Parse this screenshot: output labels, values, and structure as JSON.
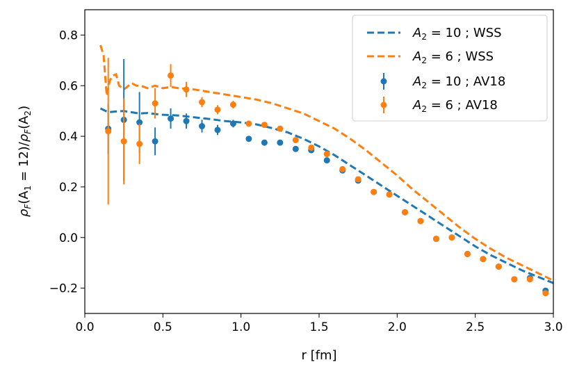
{
  "chart_data": {
    "type": "scatter",
    "xlabel": "r [fm]",
    "ylabel": "ρF(A1 = 12)/ρF(A2)",
    "ylabel_parts": {
      "rho_num": "ρ",
      "sub_F1": "F",
      "arg_num": "(A",
      "sub_1": "1",
      "eq": " = 12)/",
      "rho_den": "ρ",
      "sub_F2": "F",
      "arg_den": "(A",
      "sub_2": "2",
      "close": ")"
    },
    "xlim": [
      0.0,
      3.0
    ],
    "ylim": [
      -0.3,
      0.9
    ],
    "xticks": [
      0.0,
      0.5,
      1.0,
      1.5,
      2.0,
      2.5,
      3.0
    ],
    "xtick_labels": [
      "0.0",
      "0.5",
      "1.0",
      "1.5",
      "2.0",
      "2.5",
      "3.0"
    ],
    "yticks": [
      -0.2,
      0.0,
      0.2,
      0.4,
      0.6,
      0.8
    ],
    "ytick_labels": [
      "−0.2",
      "0.0",
      "0.2",
      "0.4",
      "0.6",
      "0.8"
    ],
    "legend_position": "top-right",
    "series": [
      {
        "name": "A2 = 10 ; WSS",
        "legend_math": {
          "A": "A",
          "sub": "2",
          "rest": " = 10 ; WSS"
        },
        "kind": "dashed-line",
        "color": "#1f77b4",
        "x": [
          0.1,
          0.15,
          0.2,
          0.25,
          0.3,
          0.35,
          0.4,
          0.45,
          0.5,
          0.6,
          0.7,
          0.8,
          0.9,
          1.0,
          1.1,
          1.2,
          1.3,
          1.4,
          1.5,
          1.6,
          1.7,
          1.8,
          1.9,
          2.0,
          2.1,
          2.2,
          2.3,
          2.4,
          2.5,
          2.6,
          2.7,
          2.8,
          2.9,
          3.0
        ],
        "y": [
          0.51,
          0.495,
          0.498,
          0.5,
          0.495,
          0.49,
          0.492,
          0.488,
          0.485,
          0.482,
          0.475,
          0.468,
          0.46,
          0.455,
          0.447,
          0.432,
          0.415,
          0.39,
          0.36,
          0.325,
          0.285,
          0.245,
          0.205,
          0.165,
          0.125,
          0.085,
          0.045,
          0.005,
          -0.035,
          -0.07,
          -0.1,
          -0.13,
          -0.155,
          -0.18
        ]
      },
      {
        "name": "A2 = 6 ; WSS",
        "legend_math": {
          "A": "A",
          "sub": "2",
          "rest": " = 6 ; WSS"
        },
        "kind": "dashed-line",
        "color": "#ff7f0e",
        "x": [
          0.1,
          0.12,
          0.14,
          0.16,
          0.18,
          0.2,
          0.22,
          0.25,
          0.28,
          0.3,
          0.33,
          0.36,
          0.4,
          0.45,
          0.5,
          0.55,
          0.6,
          0.7,
          0.8,
          0.9,
          1.0,
          1.1,
          1.2,
          1.3,
          1.4,
          1.5,
          1.6,
          1.7,
          1.8,
          1.9,
          2.0,
          2.1,
          2.2,
          2.3,
          2.4,
          2.5,
          2.6,
          2.7,
          2.8,
          2.9,
          3.0
        ],
        "y": [
          0.76,
          0.72,
          0.56,
          0.62,
          0.64,
          0.645,
          0.6,
          0.585,
          0.6,
          0.61,
          0.6,
          0.6,
          0.59,
          0.6,
          0.59,
          0.595,
          0.59,
          0.585,
          0.575,
          0.565,
          0.555,
          0.545,
          0.53,
          0.51,
          0.49,
          0.46,
          0.43,
          0.39,
          0.345,
          0.295,
          0.245,
          0.19,
          0.14,
          0.09,
          0.04,
          -0.005,
          -0.045,
          -0.08,
          -0.11,
          -0.14,
          -0.17
        ]
      },
      {
        "name": "A2 = 10 ; AV18",
        "legend_math": {
          "A": "A",
          "sub": "2",
          "rest": " = 10 ; AV18"
        },
        "kind": "errorbar",
        "color": "#1f77b4",
        "x": [
          0.15,
          0.25,
          0.35,
          0.45,
          0.55,
          0.65,
          0.75,
          0.85,
          0.95,
          1.05,
          1.15,
          1.25,
          1.35,
          1.45,
          1.55,
          1.65,
          1.75,
          1.85,
          1.95,
          2.05,
          2.15,
          2.25,
          2.35,
          2.45,
          2.55,
          2.65,
          2.75,
          2.85,
          2.95
        ],
        "y": [
          0.43,
          0.465,
          0.455,
          0.38,
          0.47,
          0.46,
          0.44,
          0.425,
          0.45,
          0.39,
          0.375,
          0.375,
          0.35,
          0.345,
          0.305,
          0.265,
          0.225,
          0.18,
          0.17,
          0.1,
          0.065,
          -0.005,
          0.0,
          -0.065,
          -0.085,
          -0.115,
          -0.165,
          -0.16,
          -0.21
        ],
        "yerr": [
          0.1,
          0.24,
          0.12,
          0.055,
          0.04,
          0.03,
          0.025,
          0.02,
          0.015,
          0.01,
          0.01,
          0.008,
          0.008,
          0.008,
          0.008,
          0.008,
          0.008,
          0.008,
          0.008,
          0.008,
          0.008,
          0.008,
          0.008,
          0.008,
          0.008,
          0.008,
          0.008,
          0.008,
          0.008
        ]
      },
      {
        "name": "A2 = 6 ; AV18",
        "legend_math": {
          "A": "A",
          "sub": "2",
          "rest": " = 6 ; AV18"
        },
        "kind": "errorbar",
        "color": "#ff7f0e",
        "x": [
          0.15,
          0.25,
          0.35,
          0.45,
          0.55,
          0.65,
          0.75,
          0.85,
          0.95,
          1.05,
          1.15,
          1.25,
          1.35,
          1.45,
          1.55,
          1.65,
          1.75,
          1.85,
          1.95,
          2.05,
          2.15,
          2.25,
          2.35,
          2.45,
          2.55,
          2.65,
          2.75,
          2.85,
          2.95
        ],
        "y": [
          0.42,
          0.38,
          0.37,
          0.53,
          0.64,
          0.585,
          0.535,
          0.505,
          0.525,
          0.45,
          0.445,
          0.43,
          0.385,
          0.355,
          0.33,
          0.27,
          0.23,
          0.18,
          0.17,
          0.1,
          0.065,
          -0.005,
          0.0,
          -0.065,
          -0.085,
          -0.115,
          -0.165,
          -0.165,
          -0.22
        ],
        "yerr": [
          0.29,
          0.17,
          0.08,
          0.06,
          0.045,
          0.03,
          0.02,
          0.018,
          0.015,
          0.012,
          0.01,
          0.01,
          0.01,
          0.01,
          0.01,
          0.008,
          0.008,
          0.008,
          0.008,
          0.008,
          0.008,
          0.008,
          0.008,
          0.008,
          0.008,
          0.008,
          0.008,
          0.008,
          0.008
        ]
      }
    ]
  }
}
